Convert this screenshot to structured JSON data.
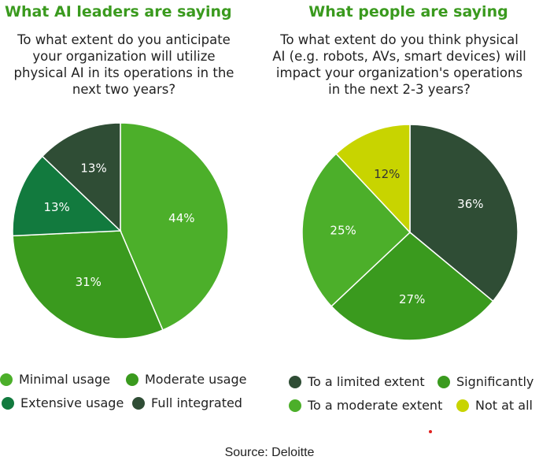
{
  "chart_data": [
    {
      "type": "pie",
      "heading": "What AI leaders are saying",
      "title_lines": [
        "To what extent do you anticipate",
        "your organization will utilize",
        "physical AI in its operations in the",
        "next two years?"
      ],
      "slices": [
        {
          "label": "Minimal usage",
          "value": 44,
          "display": "44%",
          "color": "#4caf2a"
        },
        {
          "label": "Moderate usage",
          "value": 31,
          "display": "31%",
          "color": "#3a9a1e"
        },
        {
          "label": "Extensive usage",
          "value": 13,
          "display": "13%",
          "color": "#127a3e"
        },
        {
          "label": "Full integrated",
          "value": 13,
          "display": "13%",
          "color": "#2f4d35"
        }
      ]
    },
    {
      "type": "pie",
      "heading": "What people are saying",
      "title_lines": [
        "To what extent do you think physical",
        "AI (e.g. robots, AVs, smart devices) will",
        "impact your organization's operations",
        "in the next 2-3 years?"
      ],
      "slices": [
        {
          "label": "To a limited extent",
          "value": 36,
          "display": "36%",
          "color": "#2f4d35"
        },
        {
          "label": "Significantly",
          "value": 27,
          "display": "27%",
          "color": "#3a9a1e"
        },
        {
          "label": "To a moderate extent",
          "value": 25,
          "display": "25%",
          "color": "#4caf2a"
        },
        {
          "label": "Not at all",
          "value": 12,
          "display": "12%",
          "color": "#c8d400"
        }
      ]
    }
  ],
  "source": "Source: Deloitte",
  "accent_dot_color": "#e0211f"
}
